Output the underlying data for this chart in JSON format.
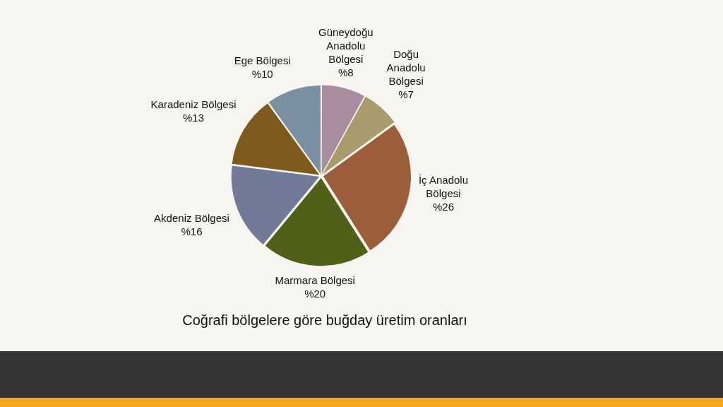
{
  "chart_data": {
    "type": "pie",
    "title": "Coğrafi bölgelere göre buğday üretim oranları",
    "categories": [
      "Güneydoğu Anadolu Bölgesi",
      "Doğu Anadolu Bölgesi",
      "İç Anadolu Bölgesi",
      "Marmara Bölgesi",
      "Akdeniz Bölgesi",
      "Karadeniz Bölgesi",
      "Ege Bölgesi"
    ],
    "values": [
      8,
      7,
      26,
      20,
      16,
      13,
      10
    ],
    "value_labels": [
      "%8",
      "%7",
      "%26",
      "%20",
      "%16",
      "%13",
      "%10"
    ],
    "colors": [
      "#a88c9f",
      "#a89c6c",
      "#9c5e3a",
      "#506018",
      "#717a96",
      "#7e5a1c",
      "#7a90a0"
    ]
  }
}
